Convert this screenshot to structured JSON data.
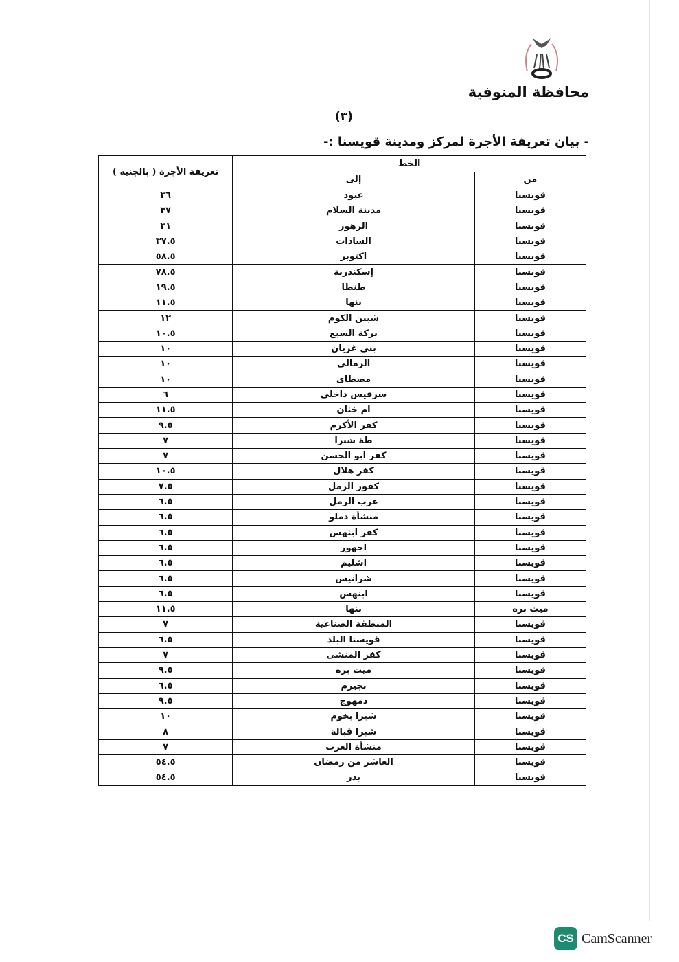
{
  "header": {
    "governorate": "محافظة المنوفية",
    "page_number": "(٣)",
    "title": "- بيان تعريفة الأجرة لمركز ومدينة قويسنا :-"
  },
  "table": {
    "group_header": "الخط",
    "col_from": "من",
    "col_to": "إلى",
    "col_fare": "تعريفة الأجرة ( بالجنيه )",
    "rows": [
      [
        "قويسنا",
        "عبود",
        "٣٦"
      ],
      [
        "قويسنا",
        "مدينة السلام",
        "٣٧"
      ],
      [
        "قويسنا",
        "الزهور",
        "٣١"
      ],
      [
        "قويسنا",
        "السادات",
        "٣٧.٥"
      ],
      [
        "قويسنا",
        "اكتوبر",
        "٥٨.٥"
      ],
      [
        "قويسنا",
        "إسكندرية",
        "٧٨.٥"
      ],
      [
        "قويسنا",
        "طنطا",
        "١٩.٥"
      ],
      [
        "قويسنا",
        "بنها",
        "١١.٥"
      ],
      [
        "قويسنا",
        "شبين الكوم",
        "١٢"
      ],
      [
        "قويسنا",
        "بركة السبع",
        "١٠.٥"
      ],
      [
        "قويسنا",
        "بني غريان",
        "١٠"
      ],
      [
        "قويسنا",
        "الرمالي",
        "١٠"
      ],
      [
        "قويسنا",
        "مصطاى",
        "١٠"
      ],
      [
        "قويسنا",
        "سرفيس داخلى",
        "٦"
      ],
      [
        "قويسنا",
        "ام خنان",
        "١١.٥"
      ],
      [
        "قويسنا",
        "كفر الأكرم",
        "٩.٥"
      ],
      [
        "قويسنا",
        "طة شبرا",
        "٧"
      ],
      [
        "قويسنا",
        "كفر ابو الحسن",
        "٧"
      ],
      [
        "قويسنا",
        "كفر هلال",
        "١٠.٥"
      ],
      [
        "قويسنا",
        "كفور الرمل",
        "٧.٥"
      ],
      [
        "قويسنا",
        "عرب الرمل",
        "٦.٥"
      ],
      [
        "قويسنا",
        "منشأة دملو",
        "٦.٥"
      ],
      [
        "قويسنا",
        "كفر ابنهس",
        "٦.٥"
      ],
      [
        "قويسنا",
        "اجهور",
        "٦.٥"
      ],
      [
        "قويسنا",
        "اشليم",
        "٦.٥"
      ],
      [
        "قويسنا",
        "شرانيس",
        "٦.٥"
      ],
      [
        "قويسنا",
        "ابنهس",
        "٦.٥"
      ],
      [
        "ميت بره",
        "بنها",
        "١١.٥"
      ],
      [
        "قويسنا",
        "المنطقة الصناعية",
        "٧"
      ],
      [
        "قويسنا",
        "قويسنا البلد",
        "٦.٥"
      ],
      [
        "قويسنا",
        "كفر المنشى",
        "٧"
      ],
      [
        "قويسنا",
        "ميت بره",
        "٩.٥"
      ],
      [
        "قويسنا",
        "بجيرم",
        "٦.٥"
      ],
      [
        "قويسنا",
        "دمهوج",
        "٩.٥"
      ],
      [
        "قويسنا",
        "شبرا بخوم",
        "١٠"
      ],
      [
        "قويسنا",
        "شبرا قبالة",
        "٨"
      ],
      [
        "قويسنا",
        "منشأة العرب",
        "٧"
      ],
      [
        "قويسنا",
        "العاشر من رمضان",
        "٥٤.٥"
      ],
      [
        "قويسنا",
        "بدر",
        "٥٤.٥"
      ]
    ]
  },
  "watermark": {
    "logo_text": "CS",
    "app_name": "CamScanner",
    "color": "#1e8a6e"
  }
}
